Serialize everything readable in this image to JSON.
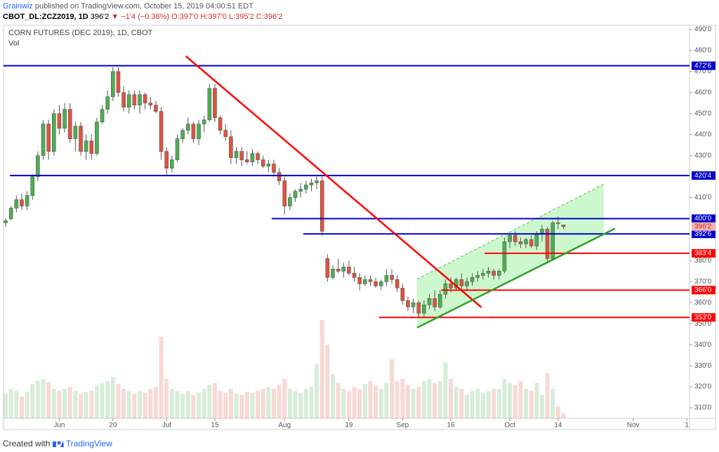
{
  "header": {
    "publisher": "Grainwiz",
    "published": "published on TradingView.com, October 15, 2019 04:00:51 EDT",
    "symbol": "CBOT_DL:ZCZ2019, 1D",
    "last": "396'2",
    "change": "▼ −1'4 (−0.38%)",
    "ohlc": "O:397'0 H:397'0 L:395'2 C:396'2"
  },
  "footer": {
    "created": "Created with",
    "brand": "TradingView"
  },
  "chart_data": {
    "type": "candlestick",
    "title": "CORN FUTURES (DEC 2019), 1D, CBOT",
    "volume_label": "Vol",
    "up_color": "#4caf50",
    "down_color": "#e0533e",
    "open": [
      398,
      400,
      405,
      409,
      406,
      411,
      420,
      430,
      445,
      432,
      450,
      443,
      452,
      438,
      444,
      432,
      437,
      431,
      446,
      452,
      458,
      470,
      460,
      453,
      459,
      454,
      459,
      455,
      454,
      451,
      432,
      424,
      428,
      438,
      442,
      445,
      438,
      445,
      447,
      462,
      448,
      442,
      439,
      429,
      432,
      428,
      427,
      431,
      428,
      425,
      426,
      422,
      418,
      406,
      410,
      413,
      414,
      416,
      417,
      418,
      381,
      372,
      376,
      375,
      377,
      374,
      372,
      369,
      371,
      370,
      368,
      370,
      373,
      371,
      367,
      361,
      358,
      360,
      355,
      359,
      362,
      358,
      364,
      369,
      367,
      371,
      368,
      370,
      372,
      373,
      374,
      375,
      373,
      375,
      389,
      392,
      389,
      388,
      390,
      387,
      393,
      395,
      381,
      398,
      397
    ],
    "high": [
      400,
      406,
      411,
      412,
      413,
      421,
      432,
      447,
      447,
      452,
      454,
      455,
      455,
      446,
      446,
      440,
      440,
      448,
      454,
      461,
      472,
      472,
      463,
      461,
      461,
      461,
      460,
      458,
      456,
      453,
      434,
      430,
      440,
      443,
      448,
      446,
      447,
      449,
      464,
      464,
      449,
      445,
      442,
      434,
      434,
      432,
      433,
      432,
      430,
      428,
      428,
      424,
      420,
      412,
      414,
      417,
      418,
      419,
      420,
      420,
      383,
      378,
      381,
      379,
      380,
      377,
      374,
      373,
      373,
      372,
      371,
      376,
      376,
      373,
      369,
      363,
      362,
      361,
      361,
      364,
      366,
      366,
      371,
      372,
      372,
      374,
      372,
      374,
      375,
      376,
      377,
      376,
      376,
      391,
      393,
      394,
      391,
      391,
      392,
      394,
      397,
      396,
      399,
      401,
      397
    ],
    "low": [
      396,
      399,
      403,
      404,
      404,
      409,
      418,
      428,
      428,
      430,
      440,
      441,
      436,
      432,
      430,
      428,
      428,
      430,
      445,
      450,
      456,
      458,
      451,
      450,
      452,
      450,
      452,
      452,
      450,
      428,
      421,
      422,
      427,
      436,
      440,
      436,
      435,
      441,
      446,
      446,
      440,
      437,
      426,
      426,
      425,
      426,
      425,
      426,
      424,
      422,
      420,
      416,
      402,
      404,
      408,
      410,
      412,
      413,
      414,
      392,
      370,
      371,
      374,
      372,
      373,
      370,
      366,
      368,
      368,
      367,
      366,
      368,
      369,
      365,
      359,
      356,
      355,
      353,
      353,
      357,
      356,
      357,
      362,
      365,
      366,
      366,
      366,
      368,
      370,
      371,
      372,
      371,
      371,
      374,
      386,
      387,
      386,
      386,
      386,
      385,
      389,
      379,
      380,
      395,
      395.25
    ],
    "close": [
      399,
      405,
      409,
      406,
      411,
      420,
      430,
      445,
      432,
      450,
      443,
      452,
      438,
      444,
      432,
      437,
      431,
      446,
      452,
      458,
      470,
      460,
      453,
      459,
      454,
      459,
      455,
      454,
      451,
      432,
      424,
      428,
      438,
      442,
      445,
      438,
      445,
      447,
      462,
      448,
      442,
      439,
      429,
      432,
      428,
      427,
      431,
      428,
      425,
      426,
      422,
      418,
      406,
      410,
      413,
      414,
      416,
      417,
      418,
      394,
      372,
      376,
      375,
      377,
      374,
      372,
      369,
      371,
      370,
      368,
      370,
      373,
      371,
      367,
      361,
      358,
      360,
      355,
      359,
      362,
      358,
      364,
      369,
      367,
      371,
      368,
      370,
      372,
      373,
      374,
      375,
      373,
      375,
      389,
      392,
      389,
      388,
      390,
      387,
      393,
      395,
      381,
      398,
      397.75,
      396.25
    ],
    "volume": [
      25,
      30,
      28,
      22,
      27,
      35,
      38,
      40,
      37,
      30,
      28,
      30,
      32,
      28,
      25,
      27,
      28,
      33,
      36,
      38,
      42,
      35,
      30,
      28,
      25,
      28,
      26,
      30,
      32,
      83,
      40,
      30,
      28,
      25,
      28,
      24,
      26,
      30,
      34,
      36,
      28,
      26,
      30,
      25,
      24,
      27,
      26,
      28,
      30,
      32,
      30,
      34,
      40,
      30,
      28,
      26,
      30,
      32,
      55,
      100,
      75,
      45,
      36,
      30,
      28,
      32,
      30,
      35,
      38,
      33,
      30,
      36,
      60,
      38,
      40,
      34,
      30,
      32,
      38,
      40,
      36,
      38,
      57,
      40,
      32,
      30,
      24,
      28,
      30,
      26,
      28,
      30,
      30,
      40,
      36,
      34,
      38,
      30,
      28,
      36,
      24,
      46,
      30,
      12,
      5
    ],
    "vlim": [
      0,
      100
    ],
    "xlim": [
      -0.4,
      127.5
    ],
    "xticks": [
      {
        "value": 10,
        "label": "Jun"
      },
      20,
      {
        "value": 30,
        "label": "Jul"
      },
      {
        "value": 39,
        "label": "15"
      },
      {
        "value": 52,
        "label": "Aug"
      },
      {
        "value": 64,
        "label": "19"
      },
      {
        "value": 74,
        "label": "Sep"
      },
      {
        "value": 83,
        "label": "16"
      },
      {
        "value": 94,
        "label": "Oct"
      },
      {
        "value": 103,
        "label": "14"
      },
      {
        "value": 117,
        "label": "Nov"
      },
      {
        "value": 127,
        "label": "1"
      }
    ],
    "ylim": [
      305,
      492
    ],
    "yticks": [
      {
        "value": 490,
        "label": "490'0"
      },
      {
        "value": 480,
        "label": "480'0"
      },
      {
        "value": 470,
        "label": "470'0"
      },
      {
        "value": 460,
        "label": "460'0"
      },
      {
        "value": 450,
        "label": "450'0"
      },
      {
        "value": 440,
        "label": "440'0"
      },
      {
        "value": 430,
        "label": "430'0"
      },
      {
        "value": 410,
        "label": "410'0"
      },
      {
        "value": 380,
        "label": "380'0"
      },
      {
        "value": 370,
        "label": "370'0"
      },
      {
        "value": 360,
        "label": "360'0"
      },
      {
        "value": 350,
        "label": "350'0"
      },
      {
        "value": 340,
        "label": "340'0"
      },
      {
        "value": 330,
        "label": "330'0"
      },
      {
        "value": 320,
        "label": "320'0"
      },
      {
        "value": 310,
        "label": "310'0"
      }
    ],
    "levels": [
      {
        "value": 472.75,
        "label": "472'6",
        "color": "#0000cc",
        "from": -0.4
      },
      {
        "value": 420.5,
        "label": "420'4",
        "color": "#0000cc",
        "from": 0.8
      },
      {
        "value": 400,
        "label": "400'0",
        "color": "#0000cc",
        "from": 49.6
      },
      {
        "value": 392.75,
        "label": "392'6",
        "color": "#0000cc",
        "from": 55.5
      },
      {
        "value": 383.5,
        "label": "383'4",
        "color": "#ff0000",
        "from": 89.3
      },
      {
        "value": 366,
        "label": "366'0",
        "color": "#ff0000",
        "from": 81.2
      },
      {
        "value": 353,
        "label": "353'0",
        "color": "#ff0000",
        "from": 69.6
      }
    ],
    "last_price": {
      "value": 396.25,
      "label": "396'2"
    },
    "trendlines": [
      {
        "color": "#ff0000",
        "from": [
          33.6,
          477.3
        ],
        "to": [
          88.7,
          357.8
        ]
      },
      {
        "color": "#2ca02c",
        "from": [
          76.7,
          348.1
        ],
        "to": [
          113.6,
          395.3
        ]
      }
    ],
    "channel": {
      "color": "#90ee90",
      "lower_from": [
        76.7,
        348.1
      ],
      "lower_to": [
        111.5,
        392.6
      ],
      "upper_from": [
        76.7,
        371.2
      ],
      "upper_to": [
        111.5,
        416.4
      ]
    }
  }
}
